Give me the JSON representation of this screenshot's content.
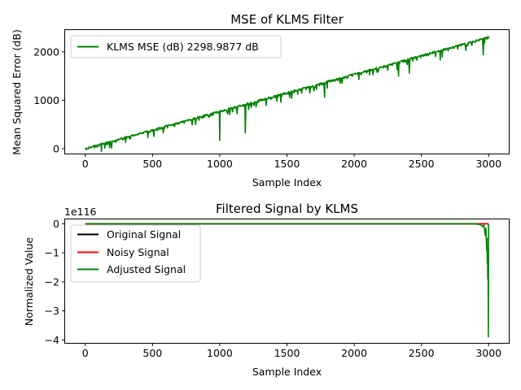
{
  "chart_data": [
    {
      "type": "line",
      "title": "MSE of KLMS Filter",
      "xlabel": "Sample Index",
      "ylabel": "Mean Squared Error (dB)",
      "xlim": [
        -150,
        3150
      ],
      "ylim": [
        -100,
        2450
      ],
      "xticks": [
        0,
        500,
        1000,
        1500,
        2000,
        2500,
        3000
      ],
      "xtick_labels": [
        "0",
        "500",
        "1000",
        "1500",
        "2000",
        "2500",
        "3000"
      ],
      "yticks": [
        0,
        1000,
        2000
      ],
      "ytick_labels": [
        "0",
        "1000",
        "2000"
      ],
      "grid": false,
      "legend": "upper-left",
      "series": [
        {
          "name": "KLMS MSE (dB) 2298.9877 dB",
          "color": "#008000",
          "trend": {
            "x": [
              0,
              3000
            ],
            "y": [
              20,
              2320
            ]
          },
          "dips": [
            {
              "x": 1000,
              "y": 170
            },
            {
              "x": 1190,
              "y": 330
            },
            {
              "x": 1455,
              "y": 960
            },
            {
              "x": 1780,
              "y": 1060
            },
            {
              "x": 2330,
              "y": 1500
            },
            {
              "x": 2410,
              "y": 1560
            },
            {
              "x": 2960,
              "y": 1940
            },
            {
              "x": 2250,
              "y": 1620
            },
            {
              "x": 1610,
              "y": 1150
            },
            {
              "x": 2640,
              "y": 1830
            }
          ]
        }
      ]
    },
    {
      "type": "line",
      "title": "Filtered Signal by KLMS",
      "xlabel": "Sample Index",
      "ylabel": "Normalized Value",
      "y_offset_text": "1e116",
      "xlim": [
        -150,
        3150
      ],
      "ylim": [
        -4.1,
        0.15
      ],
      "xticks": [
        0,
        500,
        1000,
        1500,
        2000,
        2500,
        3000
      ],
      "xtick_labels": [
        "0",
        "500",
        "1000",
        "1500",
        "2000",
        "2500",
        "3000"
      ],
      "yticks": [
        0,
        -1,
        -2,
        -3,
        -4
      ],
      "ytick_labels": [
        "0",
        "−1",
        "−2",
        "−3",
        "−4"
      ],
      "grid": false,
      "legend": "upper-left",
      "series": [
        {
          "name": "Original Signal",
          "color": "#000000"
        },
        {
          "name": "Noisy Signal",
          "color": "#ff0000"
        },
        {
          "name": "Adjusted Signal",
          "color": "#008000",
          "points": [
            [
              0,
              0
            ],
            [
              2900,
              0
            ],
            [
              2920,
              -0.02
            ],
            [
              2940,
              -0.03
            ],
            [
              2955,
              -0.1
            ],
            [
              2965,
              -0.05
            ],
            [
              2975,
              -0.4
            ],
            [
              2980,
              -0.15
            ],
            [
              2985,
              -0.9
            ],
            [
              2988,
              -0.5
            ],
            [
              2990,
              -1.35
            ],
            [
              2992,
              -1.0
            ],
            [
              2994,
              -1.9
            ],
            [
              2996,
              -1.5
            ],
            [
              2998,
              -3.9
            ],
            [
              3000,
              -0.02
            ]
          ]
        }
      ]
    }
  ]
}
